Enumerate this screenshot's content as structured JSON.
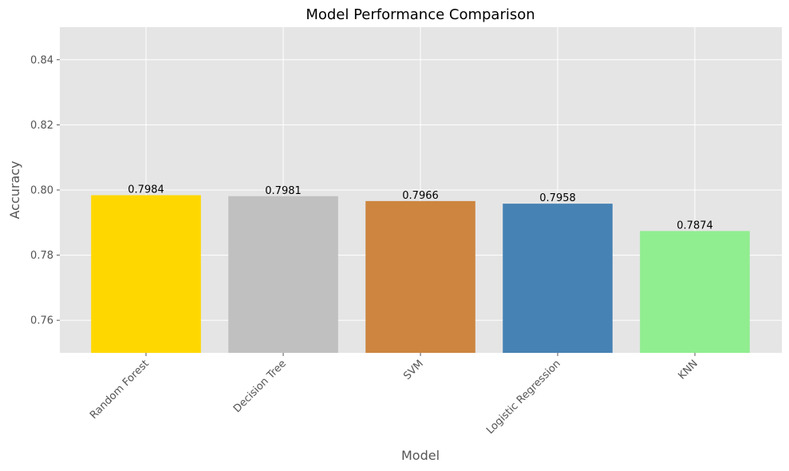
{
  "chart_data": {
    "type": "bar",
    "title": "Model Performance Comparison",
    "x_label": "Model",
    "y_label": "Accuracy",
    "categories": [
      "Random Forest",
      "Decision Tree",
      "SVM",
      "Logistic Regression",
      "KNN"
    ],
    "values": [
      0.7984,
      0.7981,
      0.7966,
      0.7958,
      0.7874
    ],
    "colors": [
      "#ffd700",
      "#c0c0c0",
      "#cd853f",
      "#4682b4",
      "#90ee90"
    ],
    "ylim": [
      0.75,
      0.85
    ],
    "yticks": [
      0.76,
      0.78,
      {
        "value": 0.8,
        "label": "0.80"
      },
      0.82,
      0.84
    ],
    "grid": true
  }
}
